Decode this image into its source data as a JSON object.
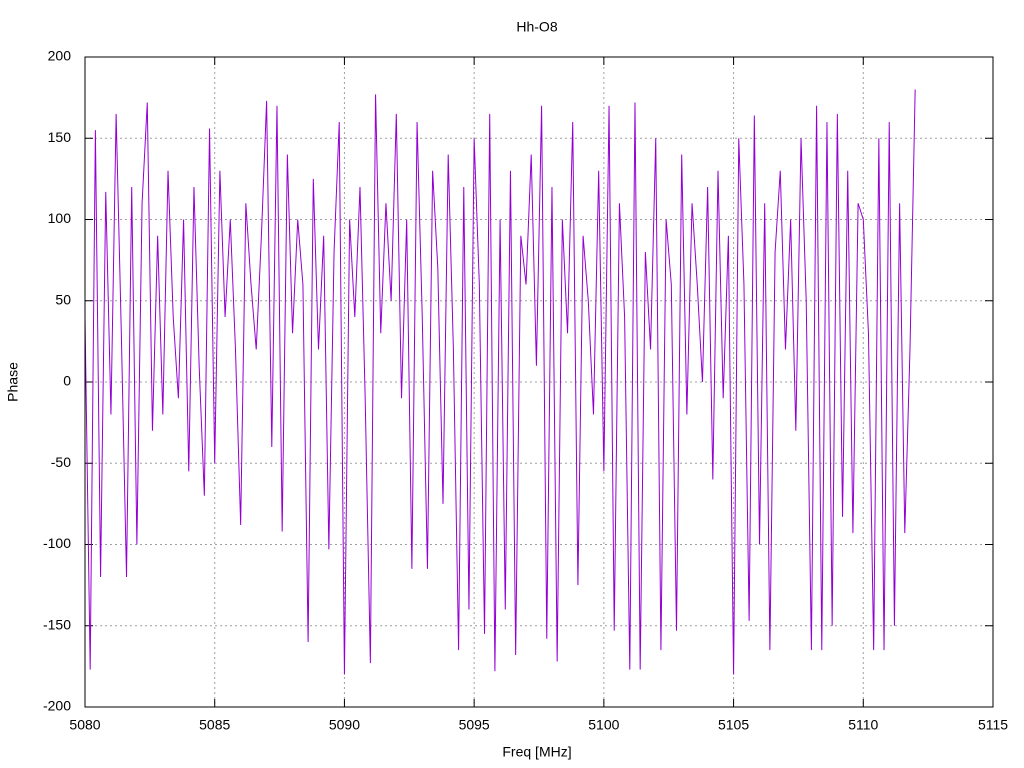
{
  "chart_data": {
    "type": "line",
    "title": "Hh-O8",
    "xlabel": "Freq [MHz]",
    "ylabel": "Phase",
    "color": "#9400d3",
    "grid": true,
    "xlim": [
      5080,
      5115
    ],
    "xticks": [
      5080,
      5085,
      5090,
      5095,
      5100,
      5105,
      5110,
      5115
    ],
    "ylim": [
      -200,
      200
    ],
    "yticks": [
      -200,
      -150,
      -100,
      -50,
      0,
      50,
      100,
      150,
      200
    ],
    "x": [
      5080,
      5080.2,
      5080.4,
      5080.6,
      5080.8,
      5081,
      5081.2,
      5081.4,
      5081.6,
      5081.8,
      5082,
      5082.2,
      5082.4,
      5082.6,
      5082.8,
      5083,
      5083.2,
      5083.4,
      5083.6,
      5083.8,
      5084,
      5084.2,
      5084.4,
      5084.6,
      5084.8,
      5085,
      5085.2,
      5085.4,
      5085.6,
      5085.8,
      5086,
      5086.2,
      5086.4,
      5086.6,
      5086.8,
      5087,
      5087.2,
      5087.4,
      5087.6,
      5087.8,
      5088,
      5088.2,
      5088.4,
      5088.6,
      5088.8,
      5089,
      5089.2,
      5089.4,
      5089.6,
      5089.8,
      5090,
      5090.2,
      5090.4,
      5090.6,
      5090.8,
      5091,
      5091.2,
      5091.4,
      5091.6,
      5091.8,
      5092,
      5092.2,
      5092.4,
      5092.6,
      5092.8,
      5093,
      5093.2,
      5093.4,
      5093.6,
      5093.8,
      5094,
      5094.2,
      5094.4,
      5094.6,
      5094.8,
      5095,
      5095.2,
      5095.4,
      5095.6,
      5095.8,
      5096,
      5096.2,
      5096.4,
      5096.6,
      5096.8,
      5097,
      5097.2,
      5097.4,
      5097.6,
      5097.8,
      5098,
      5098.2,
      5098.4,
      5098.6,
      5098.8,
      5099,
      5099.2,
      5099.4,
      5099.6,
      5099.8,
      5100,
      5100.2,
      5100.4,
      5100.6,
      5100.8,
      5101,
      5101.2,
      5101.4,
      5101.6,
      5101.8,
      5102,
      5102.2,
      5102.4,
      5102.6,
      5102.8,
      5103,
      5103.2,
      5103.4,
      5103.6,
      5103.8,
      5104,
      5104.2,
      5104.4,
      5104.6,
      5104.8,
      5105,
      5105.2,
      5105.4,
      5105.6,
      5105.8,
      5106,
      5106.2,
      5106.4,
      5106.6,
      5106.8,
      5107,
      5107.2,
      5107.4,
      5107.6,
      5107.8,
      5108,
      5108.2,
      5108.4,
      5108.6,
      5108.8,
      5109,
      5109.2,
      5109.4,
      5109.6,
      5109.8,
      5110,
      5110.2,
      5110.4,
      5110.6,
      5110.8,
      5111,
      5111.2,
      5111.4,
      5111.6,
      5111.8,
      5112
    ],
    "values": [
      40,
      -177,
      155,
      -120,
      117,
      -20,
      165,
      30,
      -120,
      120,
      -100,
      110,
      172,
      -30,
      90,
      -20,
      130,
      40,
      -10,
      100,
      -55,
      120,
      10,
      -70,
      156,
      -50,
      130,
      40,
      100,
      20,
      -88,
      110,
      60,
      20,
      90,
      173,
      -40,
      170,
      -92,
      140,
      30,
      100,
      60,
      -160,
      125,
      20,
      90,
      -103,
      80,
      160,
      -180,
      100,
      40,
      120,
      -10,
      -173,
      177,
      30,
      110,
      50,
      165,
      -10,
      100,
      -115,
      160,
      40,
      -115,
      130,
      70,
      -75,
      140,
      20,
      -165,
      120,
      -140,
      150,
      60,
      -155,
      165,
      -178,
      100,
      -140,
      130,
      -168,
      90,
      60,
      140,
      10,
      170,
      -158,
      120,
      -172,
      100,
      30,
      160,
      -125,
      90,
      50,
      -20,
      130,
      -55,
      170,
      -153,
      110,
      40,
      -177,
      172,
      -177,
      80,
      20,
      150,
      -165,
      100,
      60,
      -153,
      140,
      -20,
      110,
      60,
      0,
      120,
      -60,
      130,
      -10,
      90,
      -180,
      150,
      60,
      -147,
      164,
      -100,
      110,
      -165,
      80,
      130,
      20,
      100,
      -30,
      150,
      50,
      -165,
      170,
      -165,
      160,
      -150,
      165,
      -83,
      130,
      -93,
      110,
      100,
      30,
      -165,
      150,
      -165,
      160,
      -150,
      110,
      -93,
      20,
      180
    ]
  }
}
